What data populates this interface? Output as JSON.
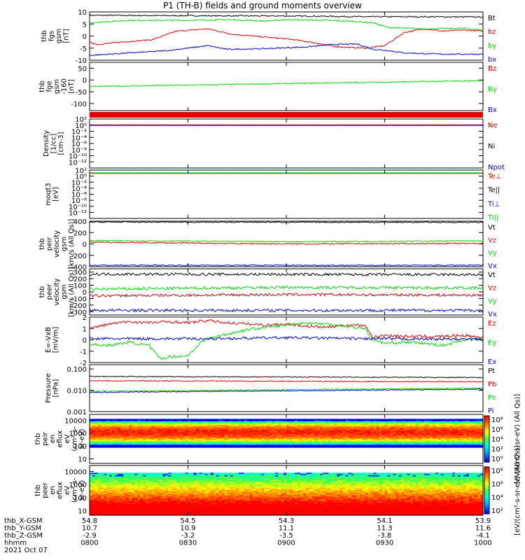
{
  "title": "P1 (TH-B) fields and ground moments overview",
  "colors": {
    "black": "#000000",
    "red": "#dd0000",
    "green": "#00dd00",
    "blue": "#0000dd"
  },
  "chart_data": [
    {
      "type": "line",
      "id": "fgs_gsm",
      "ylabel": [
        "thb",
        "fgs",
        "gsm",
        "[nT]"
      ],
      "ylim": [
        -10,
        10
      ],
      "yticks": [
        "10",
        "5",
        "0",
        "-5",
        "-10"
      ],
      "legend": [
        {
          "name": "Bt",
          "color": "black"
        },
        {
          "name": "bz",
          "color": "red"
        },
        {
          "name": "by",
          "color": "green"
        },
        {
          "name": "bx",
          "color": "blue"
        }
      ],
      "series": [
        {
          "name": "Bt",
          "color": "black",
          "x": [
            0,
            0.3,
            0.5,
            0.6,
            0.7,
            0.85,
            1
          ],
          "y": [
            8.6,
            8.4,
            8.3,
            8.2,
            8.0,
            8.0,
            7.9
          ]
        },
        {
          "name": "bz",
          "color": "red",
          "x": [
            0,
            0.02,
            0.08,
            0.16,
            0.22,
            0.3,
            0.36,
            0.45,
            0.52,
            0.58,
            0.62,
            0.66,
            0.7,
            0.75,
            0.8,
            0.85,
            0.9,
            0.95,
            1
          ],
          "y": [
            -2.5,
            -3.5,
            -2.5,
            -1.5,
            2,
            3,
            0.8,
            -0.5,
            -1.5,
            -3,
            -4.3,
            -4.7,
            -5,
            -4,
            1.5,
            3,
            2,
            2.5,
            2
          ]
        },
        {
          "name": "by",
          "color": "green",
          "x": [
            0,
            0.1,
            0.25,
            0.35,
            0.45,
            0.5,
            0.6,
            0.68,
            0.72,
            0.76,
            0.85,
            0.95,
            1
          ],
          "y": [
            5.5,
            6.5,
            6.5,
            6.8,
            6.2,
            6.8,
            6.5,
            6.0,
            5.5,
            3.5,
            3.0,
            3.2,
            2.5
          ]
        },
        {
          "name": "bx",
          "color": "blue",
          "x": [
            0,
            0.1,
            0.2,
            0.3,
            0.35,
            0.45,
            0.55,
            0.62,
            0.68,
            0.72,
            0.76,
            0.8,
            0.9,
            1
          ],
          "y": [
            -8.0,
            -7.0,
            -6.0,
            -4.0,
            -5.5,
            -5.2,
            -4.5,
            -3.5,
            -3.3,
            -5.5,
            -6.0,
            -7.0,
            -7.5,
            -7.5
          ]
        }
      ]
    },
    {
      "type": "line",
      "id": "fge_gsm",
      "ylabel": [
        "thb",
        "fge",
        "gsm",
        "-160",
        "[nT]"
      ],
      "ylim": [
        -130,
        75
      ],
      "yticks": [
        "50",
        "0",
        "-50",
        "-100"
      ],
      "legend": [
        {
          "name": "Bz",
          "color": "red"
        },
        {
          "name": "By",
          "color": "green"
        },
        {
          "name": "Bx",
          "color": "blue"
        }
      ],
      "series": [
        {
          "name": "By",
          "color": "green",
          "x": [
            0,
            1
          ],
          "y": [
            -28,
            -3
          ]
        }
      ],
      "redbar": true
    },
    {
      "type": "line",
      "id": "density",
      "ylabel": [
        "Density",
        "[1/cc]",
        "[cm-3]"
      ],
      "ylim_log": [
        -14,
        2
      ],
      "yticks": [
        "10⁰",
        "10⁻²",
        "10⁻⁴",
        "10⁻⁶",
        "10⁻⁸",
        "10⁻¹⁰",
        "10⁻¹²"
      ],
      "top_label": "10²",
      "legend": [
        {
          "name": "Ne",
          "color": "red"
        },
        {
          "name": "Ni",
          "color": "black"
        },
        {
          "name": "Npot",
          "color": "blue"
        }
      ],
      "series": [
        {
          "name": "Ne",
          "color": "red",
          "x": [
            0,
            1
          ],
          "y": [
            0.1,
            0.1
          ]
        },
        {
          "name": "Npot",
          "color": "blue",
          "x": [
            0,
            1
          ],
          "y": [
            -0.1,
            -0.1
          ]
        }
      ]
    },
    {
      "type": "line",
      "id": "temperature",
      "ylabel": [
        "moqt3",
        "[eV]"
      ],
      "ylim_log": [
        -14,
        2
      ],
      "yticks": [
        "10⁰",
        "10⁻²",
        "10⁻⁴",
        "10⁻⁶",
        "10⁻⁸",
        "10⁻¹⁰",
        "10⁻¹²"
      ],
      "top_label": "10²",
      "legend": [
        {
          "name": "Te⊥",
          "color": "red"
        },
        {
          "name": "Te||",
          "color": "black"
        },
        {
          "name": "Ti⊥",
          "color": "blue"
        },
        {
          "name": "Ti||",
          "color": "green"
        }
      ],
      "series": [
        {
          "name": "Te⊥",
          "color": "red",
          "x": [
            0,
            1
          ],
          "y": [
            0.9,
            0.9
          ]
        },
        {
          "name": "Ti||",
          "color": "green",
          "x": [
            0,
            1
          ],
          "y": [
            1.1,
            1.1
          ]
        }
      ]
    },
    {
      "type": "line",
      "id": "peir_velocity",
      "ylabel": [
        "thb",
        "peir",
        "velocity",
        "gsm",
        "[km/s (All Qs)]"
      ],
      "ylim": [
        -400,
        400
      ],
      "yticks": [
        "400",
        "200",
        "0",
        "-200",
        "-400"
      ],
      "legend": [
        {
          "name": "Vt",
          "color": "black"
        },
        {
          "name": "Vz",
          "color": "red"
        },
        {
          "name": "Vy",
          "color": "green"
        },
        {
          "name": "Vx",
          "color": "blue"
        }
      ],
      "series": [
        {
          "name": "Vt",
          "color": "black",
          "x": [
            0,
            1
          ],
          "y": [
            385,
            380
          ]
        },
        {
          "name": "Vy",
          "color": "green",
          "x": [
            0,
            0.5,
            1
          ],
          "y": [
            60,
            40,
            55
          ]
        },
        {
          "name": "Vz",
          "color": "red",
          "x": [
            0,
            0.5,
            1
          ],
          "y": [
            30,
            0,
            10
          ]
        },
        {
          "name": "Vx",
          "color": "blue",
          "x": [
            0,
            1
          ],
          "y": [
            -375,
            -375
          ]
        }
      ]
    },
    {
      "type": "line",
      "id": "peer_velocity",
      "ylabel": [
        "thb",
        "peer",
        "velocity",
        "gsm",
        "[km/s (All Qs)]"
      ],
      "ylim": [
        -350,
        350
      ],
      "yticks": [
        "300",
        "200",
        "100",
        "0",
        "-100",
        "-200",
        "-300"
      ],
      "legend": [
        {
          "name": "Vt",
          "color": "black"
        },
        {
          "name": "Vz",
          "color": "red"
        },
        {
          "name": "Vy",
          "color": "green"
        },
        {
          "name": "Vx",
          "color": "blue"
        }
      ],
      "series": [
        {
          "name": "Vt",
          "color": "black",
          "x": [
            0,
            1
          ],
          "y": [
            270,
            260
          ]
        },
        {
          "name": "Vy",
          "color": "green",
          "x": [
            0,
            0.5,
            1
          ],
          "y": [
            40,
            70,
            60
          ]
        },
        {
          "name": "Vz",
          "color": "red",
          "x": [
            0,
            0.5,
            1
          ],
          "y": [
            -60,
            -40,
            -50
          ]
        },
        {
          "name": "Vx",
          "color": "blue",
          "x": [
            0,
            1
          ],
          "y": [
            -280,
            -280
          ]
        }
      ]
    },
    {
      "type": "line",
      "id": "e_field",
      "ylabel": [
        "E=-VxB",
        "[mV/m]"
      ],
      "ylim": [
        -2,
        2
      ],
      "yticks": [
        "2",
        "1",
        "0",
        "-1",
        "-2"
      ],
      "legend": [
        {
          "name": "Ez",
          "color": "red"
        },
        {
          "name": "Ey",
          "color": "green"
        },
        {
          "name": "Ex",
          "color": "blue"
        }
      ],
      "series": [
        {
          "name": "Ez",
          "color": "red",
          "x": [
            0,
            0.05,
            0.1,
            0.15,
            0.2,
            0.25,
            0.3,
            0.35,
            0.4,
            0.45,
            0.5,
            0.55,
            0.6,
            0.65,
            0.7,
            0.72,
            0.75,
            0.8,
            0.85,
            0.9,
            0.95,
            1
          ],
          "y": [
            1.0,
            1.4,
            1.6,
            1.5,
            1.6,
            1.5,
            1.7,
            1.5,
            1.4,
            1.3,
            1.4,
            1.2,
            1.1,
            1.3,
            1.3,
            0.2,
            0.4,
            0.3,
            0.3,
            0.3,
            0.4,
            0.2
          ]
        },
        {
          "name": "Ey",
          "color": "green",
          "x": [
            0,
            0.05,
            0.1,
            0.15,
            0.18,
            0.2,
            0.25,
            0.28,
            0.3,
            0.35,
            0.4,
            0.45,
            0.5,
            0.55,
            0.6,
            0.65,
            0.7,
            0.72,
            0.75,
            0.8,
            0.85,
            0.9,
            0.95,
            1
          ],
          "y": [
            -0.4,
            -0.5,
            -0.2,
            -0.5,
            -1.7,
            -1.5,
            -1.4,
            -0.3,
            0.1,
            0.5,
            0.9,
            1.1,
            1.3,
            1.5,
            1.4,
            1.2,
            1.0,
            0.0,
            -0.3,
            -0.2,
            -0.3,
            -0.5,
            0.0,
            0.1
          ]
        },
        {
          "name": "Ex",
          "color": "blue",
          "x": [
            0,
            0.3,
            0.5,
            0.7,
            1
          ],
          "y": [
            0.1,
            0.1,
            0.2,
            0.1,
            0.05
          ]
        }
      ]
    },
    {
      "type": "line",
      "id": "pressure",
      "ylabel": [
        "Pressure",
        "[nPa]"
      ],
      "ylim_log": [
        -3,
        -0.8
      ],
      "yticks": [
        "0.100",
        "0.010",
        "0.001"
      ],
      "legend": [
        {
          "name": "Pt",
          "color": "black"
        },
        {
          "name": "Pb",
          "color": "red"
        },
        {
          "name": "Pe",
          "color": "green"
        },
        {
          "name": "Pi",
          "color": "blue"
        }
      ],
      "series": [
        {
          "name": "Pt",
          "color": "black",
          "x": [
            0,
            1
          ],
          "y": [
            -1.35,
            -1.4
          ]
        },
        {
          "name": "Pb",
          "color": "red",
          "x": [
            0,
            1
          ],
          "y": [
            -1.55,
            -1.6
          ]
        },
        {
          "name": "Pe",
          "color": "green",
          "x": [
            0,
            1
          ],
          "y": [
            -2.05,
            -1.9
          ]
        },
        {
          "name": "Pi",
          "color": "blue",
          "x": [
            0,
            1
          ],
          "y": [
            -2.1,
            -1.95
          ]
        }
      ]
    },
    {
      "type": "heatmap",
      "id": "peir_spectrogram",
      "ylabel": [
        "thb",
        "peir",
        "en",
        "eflux",
        "eV",
        "(cm²-s-",
        "sr-eV)"
      ],
      "yticks": [
        "10000",
        "1000",
        "100",
        "10"
      ],
      "colorbar_ticks": [
        "10⁸",
        "10⁶",
        "10⁴",
        "10²",
        "10⁰"
      ],
      "colorbar_label": "[eV/(cm²-s-sr-eV) (All Qs)]"
    },
    {
      "type": "heatmap",
      "id": "peer_spectrogram",
      "ylabel": [
        "thb",
        "peer",
        "en",
        "eflux",
        "eV",
        "(cm²-s-",
        "sr-eV)"
      ],
      "yticks": [
        "10000",
        "1000",
        "100",
        "10"
      ],
      "colorbar_ticks": [
        "10⁸",
        "10⁶",
        "10⁴",
        "10²"
      ],
      "colorbar_label": "[eV/(cm²-s-sr-eV) (All Qs)]"
    }
  ],
  "ephemeris": {
    "rows": [
      {
        "label": "thb_X-GSM",
        "values": [
          "54.8",
          "54.5",
          "54.3",
          "54.1",
          "53.9"
        ]
      },
      {
        "label": "thb_Y-GSM",
        "values": [
          "10.7",
          "10.9",
          "11.1",
          "11.3",
          "11.6"
        ]
      },
      {
        "label": "thb_Z-GSM",
        "values": [
          "-2.9",
          "-3.2",
          "-3.5",
          "-3.8",
          "-4.1"
        ]
      },
      {
        "label": "hhmm",
        "values": [
          "0800",
          "0830",
          "0900",
          "0930",
          "1000"
        ]
      }
    ],
    "date": "2021 Oct 07"
  }
}
